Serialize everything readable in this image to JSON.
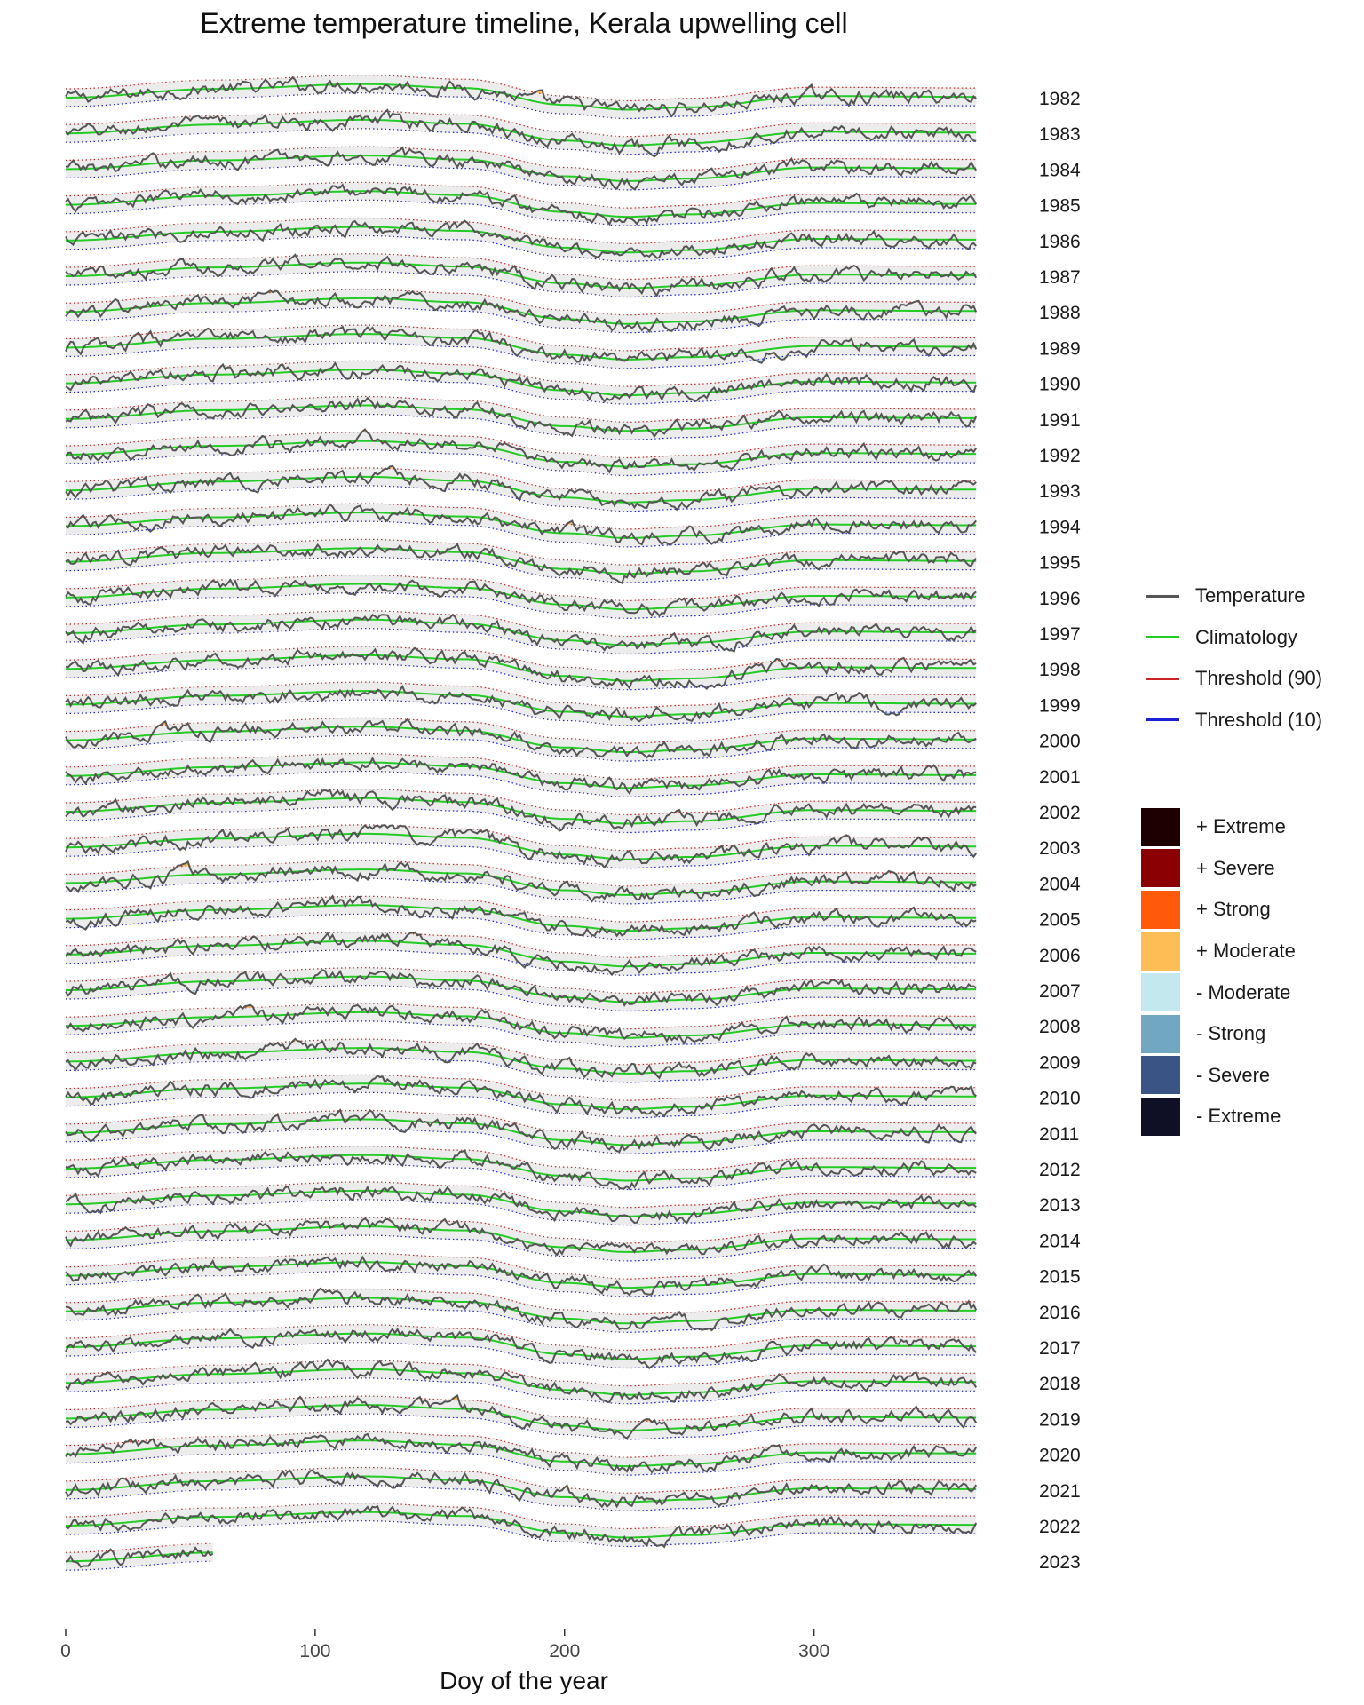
{
  "chart_data": {
    "type": "line",
    "title": "Extreme temperature timeline, Kerala upwelling cell",
    "xlabel": "Doy of the year",
    "ylabel": "",
    "xlim": [
      0,
      366
    ],
    "x_ticks": [
      0,
      100,
      200,
      300
    ],
    "facet_labels": [
      "1982",
      "1983",
      "1984",
      "1985",
      "1986",
      "1987",
      "1988",
      "1989",
      "1990",
      "1991",
      "1992",
      "1993",
      "1994",
      "1995",
      "1996",
      "1997",
      "1998",
      "1999",
      "2000",
      "2001",
      "2002",
      "2003",
      "2004",
      "2005",
      "2006",
      "2007",
      "2008",
      "2009",
      "2010",
      "2011",
      "2012",
      "2013",
      "2014",
      "2015",
      "2016",
      "2017",
      "2018",
      "2019",
      "2020",
      "2021",
      "2022",
      "2023"
    ],
    "climatology_shape": {
      "doy": [
        0,
        60,
        120,
        160,
        200,
        225,
        250,
        300,
        366
      ],
      "relative_level": [
        0.0,
        0.55,
        0.85,
        0.6,
        -0.45,
        -0.75,
        -0.6,
        0.1,
        0.05
      ]
    },
    "series": [
      {
        "name": "Temperature",
        "color": "#555555"
      },
      {
        "name": "Climatology",
        "color": "#22cc22"
      },
      {
        "name": "Threshold (90)",
        "color": "#cc2222"
      },
      {
        "name": "Threshold (10)",
        "color": "#1f1fd6"
      }
    ],
    "categories": [
      {
        "name": "+ Extreme",
        "color": "#1f0000"
      },
      {
        "name": "+ Severe",
        "color": "#8b0000"
      },
      {
        "name": "+ Strong",
        "color": "#ff5a0a"
      },
      {
        "name": "+ Moderate",
        "color": "#ffbe55"
      },
      {
        "name": "- Moderate",
        "color": "#c3e8ee"
      },
      {
        "name": "- Strong",
        "color": "#72a7c2"
      },
      {
        "name": "- Severe",
        "color": "#3a5485"
      },
      {
        "name": "- Extreme",
        "color": "#0f0f26"
      }
    ],
    "last_year_end_doy": 59,
    "grid": false,
    "legend_position": "right"
  }
}
